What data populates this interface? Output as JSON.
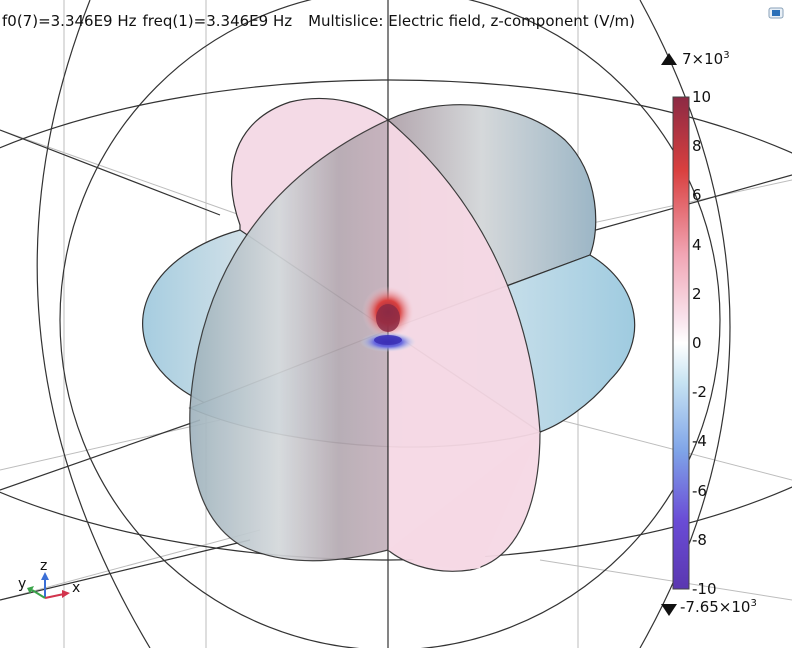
{
  "header": {
    "param1": "f0(7)=3.346E9 Hz",
    "param2": "freq(1)=3.346E9 Hz",
    "plot_title": "Multislice: Electric field, z-component (V/m)"
  },
  "colorbar": {
    "max_marker": "7×10",
    "max_exp": "3",
    "min_marker": "-7.65×10",
    "min_exp": "3",
    "ticks": [
      "10",
      "8",
      "6",
      "4",
      "2",
      "0",
      "-2",
      "-4",
      "-6",
      "-8",
      "-10"
    ],
    "colors": [
      "#8c2a44",
      "#d9403f",
      "#f1a5b4",
      "#f9e3ec",
      "#ffffff",
      "#c7e3f2",
      "#7fa4e8",
      "#6a4cd6",
      "#5a37b0"
    ]
  },
  "axis_triad": {
    "x": "x",
    "y": "y",
    "z": "z"
  },
  "icons": {
    "corner": "view-icon"
  }
}
